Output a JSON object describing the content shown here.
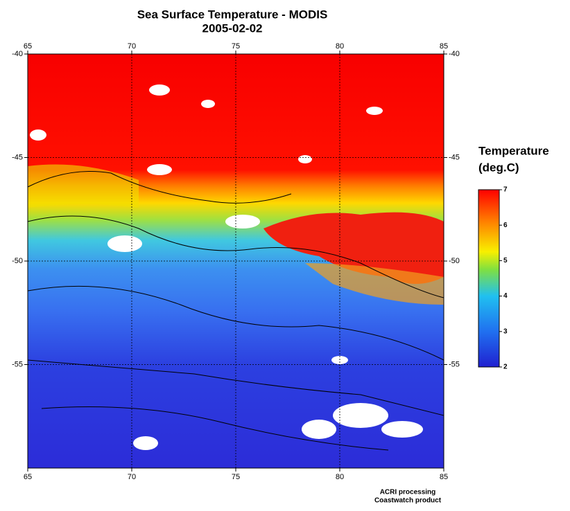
{
  "title": "Sea Surface Temperature - MODIS",
  "date": "2005-02-02",
  "map": {
    "lon_range": [
      65,
      85
    ],
    "lat_range": [
      -40,
      -60
    ],
    "lon_ticks": [
      65,
      70,
      75,
      80,
      85
    ],
    "lat_ticks": [
      -40,
      -45,
      -50,
      -55
    ],
    "grid": true
  },
  "colorbar": {
    "label": [
      "Temperature",
      "(deg.C)"
    ],
    "range": [
      2,
      7
    ],
    "ticks": [
      2,
      3,
      4,
      5,
      6,
      7
    ]
  },
  "credits": [
    "ACRI processing",
    "Coastwatch product"
  ]
}
